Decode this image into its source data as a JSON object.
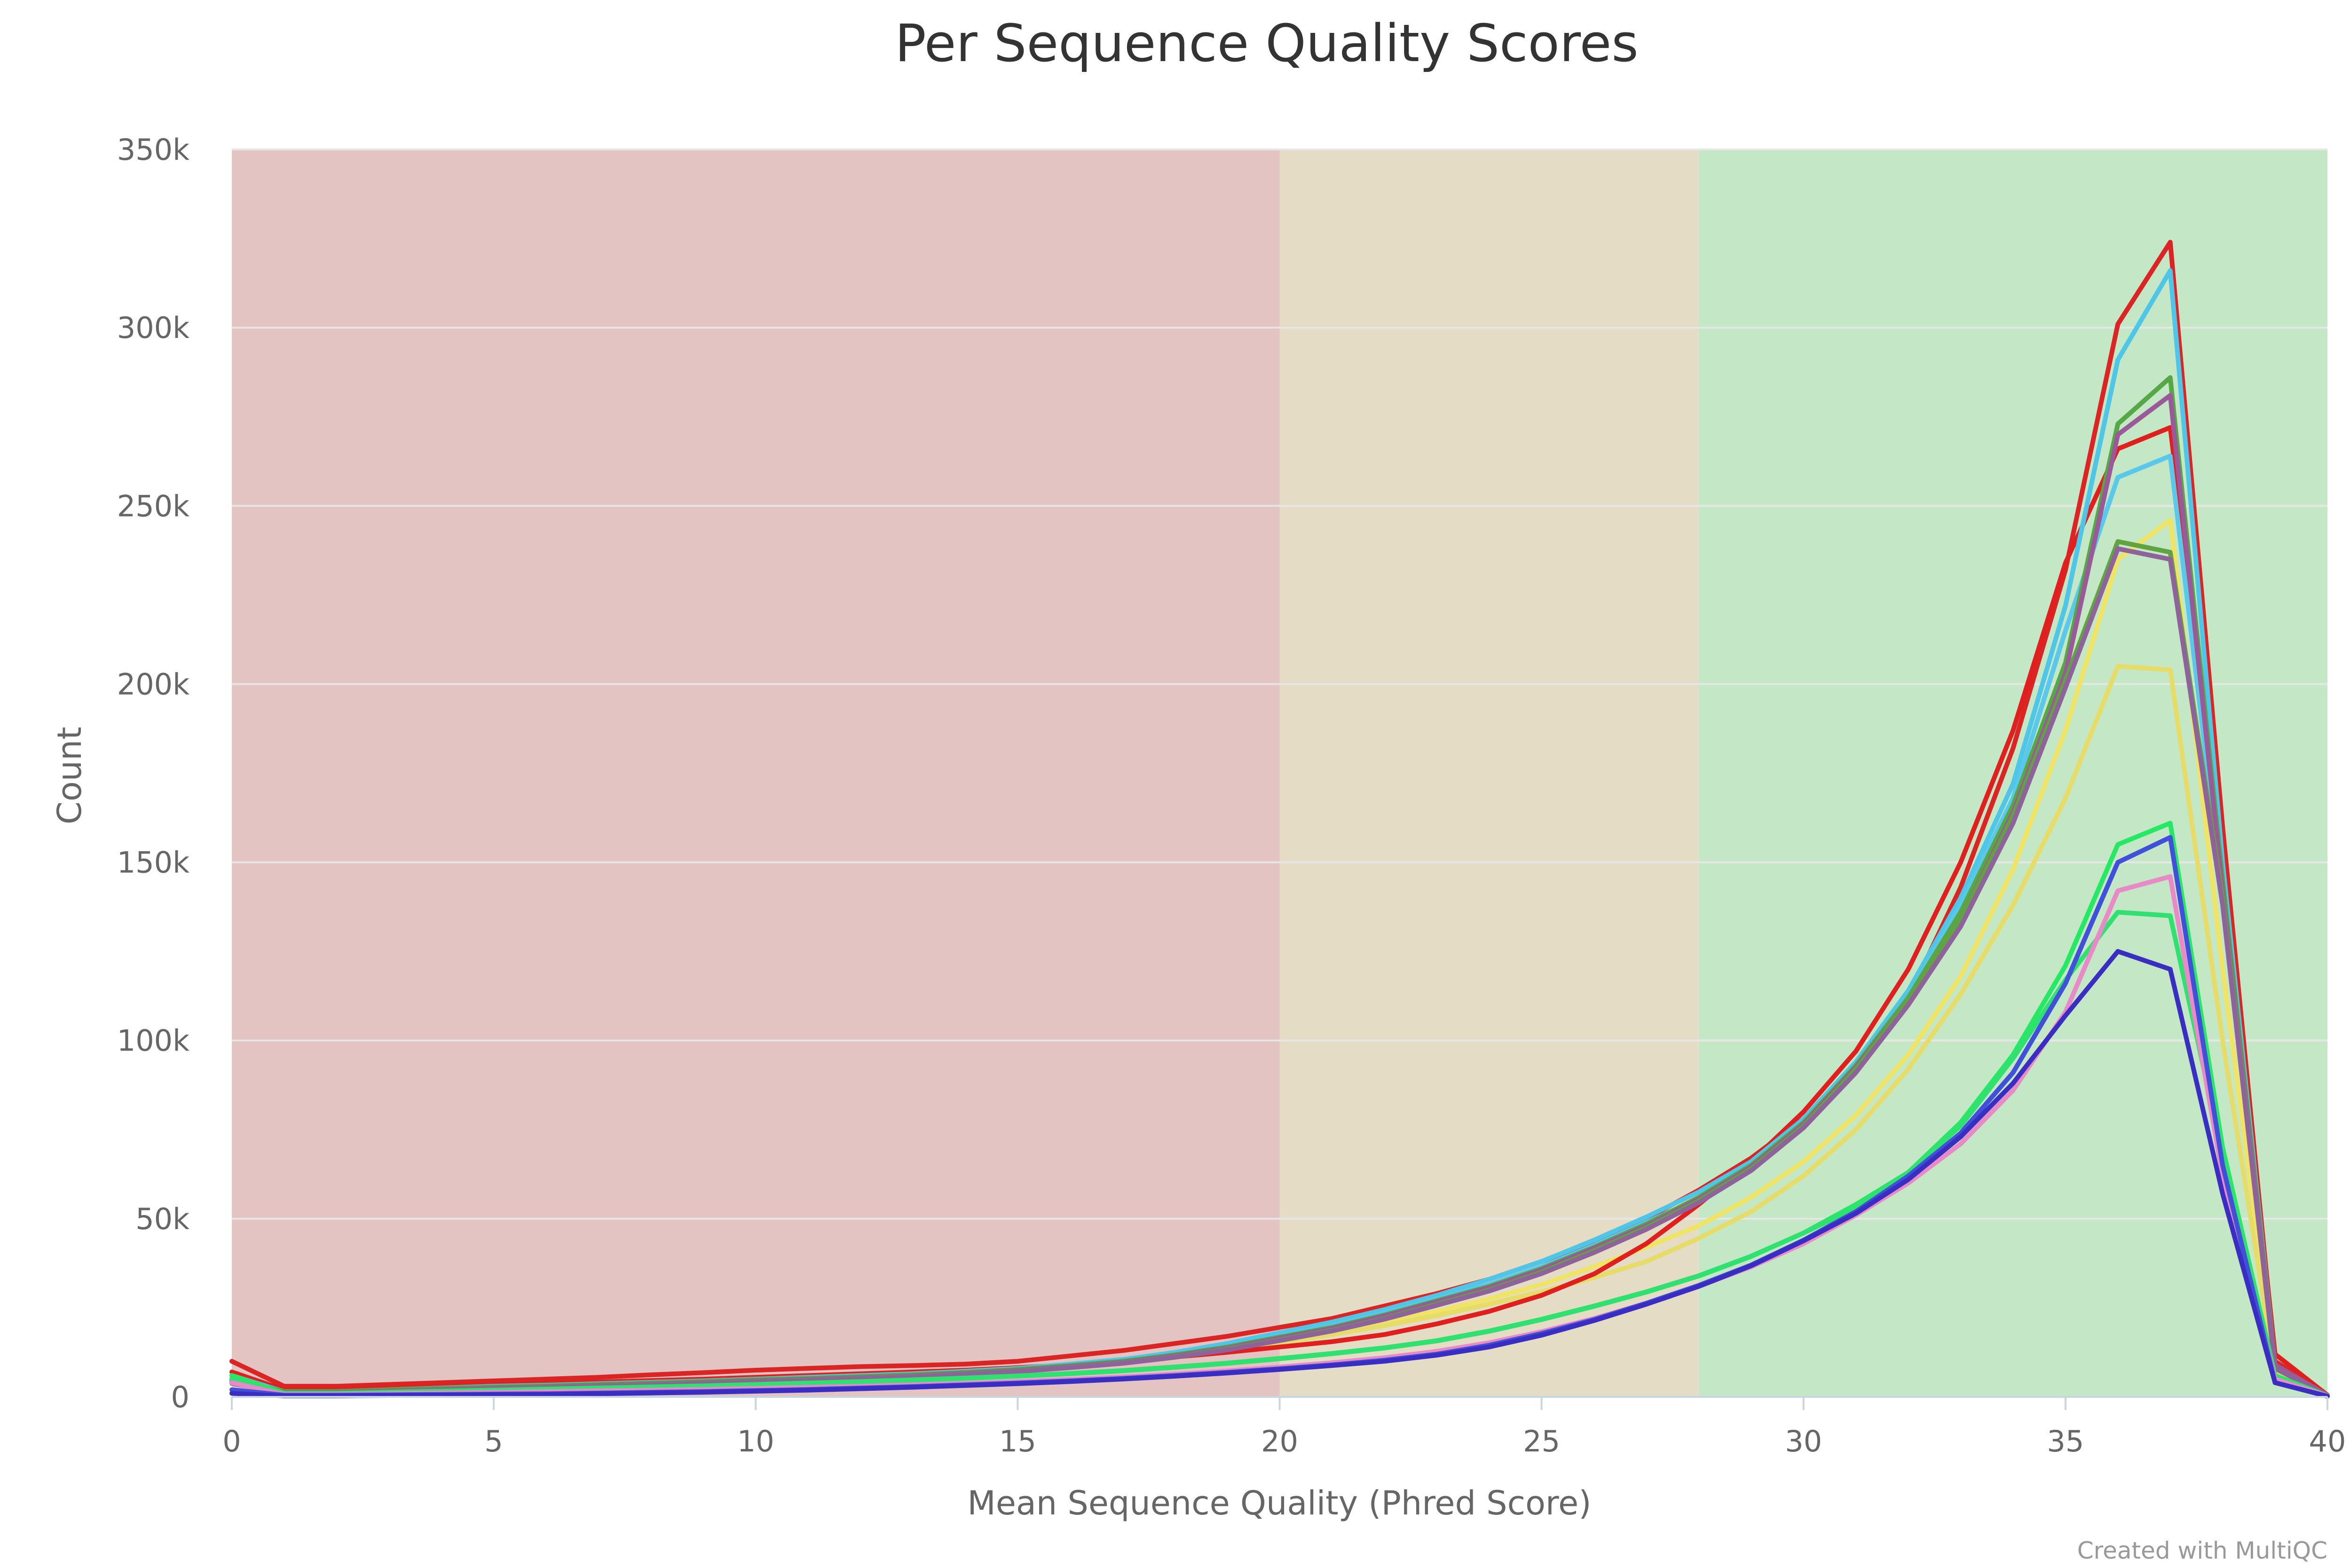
{
  "chart_data": {
    "type": "line",
    "title": "Per Sequence Quality Scores",
    "xlabel": "Mean Sequence Quality (Phred Score)",
    "ylabel": "Count",
    "xlim": [
      0,
      40
    ],
    "ylim": [
      0,
      350000
    ],
    "x_ticks": [
      0,
      5,
      10,
      15,
      20,
      25,
      30,
      35,
      40
    ],
    "x_tick_labels": [
      "0",
      "5",
      "10",
      "15",
      "20",
      "25",
      "30",
      "35",
      "40"
    ],
    "y_ticks": [
      0,
      50000,
      100000,
      150000,
      200000,
      250000,
      300000,
      350000
    ],
    "y_tick_labels": [
      "0",
      "50k",
      "100k",
      "150k",
      "200k",
      "250k",
      "300k",
      "350k"
    ],
    "grid": "horizontal",
    "bands": [
      {
        "from": 0,
        "to": 20,
        "color": "#e4c3c3"
      },
      {
        "from": 20,
        "to": 28,
        "color": "#e5dcc5"
      },
      {
        "from": 28,
        "to": 40,
        "color": "#c4e8c5"
      }
    ],
    "credit": "Created with MultiQC",
    "x": [
      0,
      1,
      2,
      3,
      4,
      5,
      6,
      7,
      8,
      9,
      10,
      11,
      12,
      13,
      14,
      15,
      16,
      17,
      18,
      19,
      20,
      21,
      22,
      23,
      24,
      25,
      26,
      27,
      28,
      29,
      30,
      31,
      32,
      33,
      34,
      35,
      36,
      37,
      38,
      39,
      40
    ],
    "series": [
      {
        "color": "#f0e466",
        "values": [
          4000,
          1500,
          1500,
          2000,
          2200,
          2500,
          2800,
          3200,
          3600,
          4000,
          4500,
          4800,
          5200,
          5800,
          6500,
          7200,
          8200,
          9500,
          11000,
          13000,
          15500,
          18000,
          21000,
          24000,
          27500,
          31500,
          36500,
          42000,
          48000,
          56000,
          66000,
          79000,
          96000,
          118000,
          148000,
          187000,
          235000,
          246000,
          120000,
          8000,
          500
        ]
      },
      {
        "color": "#e6dc6a",
        "values": [
          5000,
          1800,
          1800,
          2300,
          2500,
          2800,
          3100,
          3500,
          3900,
          4300,
          4800,
          5100,
          5500,
          6100,
          6800,
          7500,
          8400,
          9600,
          11000,
          12800,
          15000,
          17500,
          20000,
          22800,
          26000,
          29500,
          33500,
          38000,
          44500,
          52000,
          62000,
          75000,
          92000,
          113000,
          138000,
          168000,
          205000,
          204000,
          100000,
          7000,
          400
        ]
      },
      {
        "color": "#db2424",
        "values": [
          10000,
          3000,
          3000,
          3500,
          4000,
          4500,
          5000,
          5500,
          6200,
          6800,
          7500,
          8000,
          8500,
          8800,
          9200,
          10000,
          11500,
          13000,
          15000,
          17000,
          19500,
          22000,
          25500,
          29000,
          33000,
          38000,
          43500,
          50000,
          58000,
          67000,
          78000,
          92000,
          112000,
          143000,
          182000,
          232000,
          301000,
          324000,
          160000,
          10000,
          500
        ]
      },
      {
        "color": "#e01f1f",
        "values": [
          7000,
          2000,
          2000,
          2500,
          3000,
          3500,
          3800,
          4200,
          4600,
          5000,
          5500,
          6000,
          6500,
          7000,
          7500,
          8200,
          9000,
          10000,
          11200,
          12500,
          14000,
          15500,
          17500,
          20500,
          24000,
          28500,
          34500,
          43000,
          54000,
          66000,
          80000,
          97000,
          120000,
          150000,
          187000,
          234000,
          266000,
          272000,
          150000,
          12000,
          500
        ]
      },
      {
        "color": "#4fc6e8",
        "values": [
          6000,
          1500,
          1500,
          2000,
          2500,
          3000,
          3300,
          3700,
          4100,
          4500,
          5000,
          5500,
          6000,
          6500,
          7200,
          8000,
          9200,
          10500,
          12500,
          15000,
          18000,
          21000,
          24500,
          28500,
          33000,
          38000,
          44000,
          50500,
          57500,
          66000,
          78000,
          94000,
          114000,
          140000,
          172000,
          222000,
          291000,
          316000,
          150000,
          9000,
          400
        ]
      },
      {
        "color": "#5ac8ea",
        "values": [
          5000,
          1200,
          1200,
          1700,
          2200,
          2600,
          2900,
          3300,
          3700,
          4100,
          4600,
          5000,
          5500,
          6000,
          6700,
          7500,
          8600,
          9900,
          11800,
          14000,
          17000,
          20000,
          23500,
          27500,
          31500,
          36500,
          42500,
          49000,
          55500,
          64000,
          76000,
          92000,
          112000,
          138000,
          168000,
          215000,
          258000,
          264000,
          140000,
          8000,
          400
        ]
      },
      {
        "color": "#55a845",
        "values": [
          5000,
          1500,
          1500,
          2000,
          2400,
          2800,
          3100,
          3500,
          3900,
          4300,
          4800,
          5200,
          5700,
          6200,
          6900,
          7700,
          8800,
          10000,
          11800,
          14000,
          16800,
          19500,
          23000,
          27000,
          31000,
          36000,
          42000,
          48500,
          56000,
          65000,
          77000,
          93000,
          112000,
          136000,
          166000,
          206000,
          273000,
          286000,
          145000,
          9000,
          400
        ]
      },
      {
        "color": "#9a5a9a",
        "values": [
          4500,
          1200,
          1200,
          1700,
          2100,
          2500,
          2800,
          3200,
          3600,
          4000,
          4500,
          4900,
          5400,
          5900,
          6600,
          7400,
          8500,
          9700,
          11500,
          13700,
          16500,
          19200,
          22700,
          26700,
          30700,
          35700,
          41700,
          48000,
          55500,
          64500,
          76500,
          92500,
          111000,
          134000,
          164000,
          203000,
          270000,
          281000,
          142000,
          9000,
          400
        ]
      },
      {
        "color": "#61a341",
        "values": [
          4000,
          1000,
          1000,
          1500,
          1900,
          2300,
          2600,
          3000,
          3400,
          3800,
          4300,
          4700,
          5200,
          5700,
          6400,
          7200,
          8300,
          9500,
          11200,
          13400,
          16000,
          18700,
          22000,
          26000,
          30000,
          35000,
          41000,
          47500,
          55000,
          64000,
          76000,
          92000,
          111000,
          134000,
          163000,
          201000,
          240000,
          237000,
          140000,
          8000,
          400
        ]
      },
      {
        "color": "#8e629a",
        "values": [
          3800,
          1000,
          1000,
          1400,
          1800,
          2200,
          2500,
          2900,
          3300,
          3700,
          4200,
          4600,
          5100,
          5600,
          6300,
          7100,
          8200,
          9400,
          11100,
          13200,
          15800,
          18500,
          21800,
          25700,
          29700,
          34600,
          40500,
          47000,
          54500,
          63500,
          75500,
          91000,
          110000,
          132000,
          161000,
          199000,
          238000,
          235000,
          138000,
          8000,
          400
        ]
      },
      {
        "color": "#27e865",
        "values": [
          6000,
          1000,
          1000,
          1300,
          1600,
          1900,
          2200,
          2500,
          2800,
          3100,
          3500,
          3900,
          4300,
          4800,
          5300,
          5900,
          6600,
          7400,
          8400,
          9500,
          10800,
          12200,
          13800,
          15800,
          18500,
          21800,
          25500,
          29500,
          34000,
          39500,
          46000,
          54000,
          63000,
          77000,
          96000,
          121000,
          155000,
          161000,
          70000,
          6000,
          300
        ]
      },
      {
        "color": "#30e070",
        "values": [
          5000,
          900,
          900,
          1200,
          1500,
          1800,
          2100,
          2400,
          2700,
          3000,
          3400,
          3800,
          4200,
          4700,
          5200,
          5800,
          6500,
          7300,
          8300,
          9400,
          10700,
          12100,
          13700,
          15700,
          18400,
          21700,
          25400,
          29400,
          33900,
          39400,
          46000,
          53000,
          63000,
          76000,
          95000,
          117000,
          136000,
          135000,
          68000,
          5000,
          300
        ]
      },
      {
        "color": "#e88ac7",
        "values": [
          4000,
          700,
          700,
          900,
          1100,
          1300,
          1500,
          1700,
          1900,
          2100,
          2400,
          2700,
          3000,
          3400,
          3800,
          4300,
          4900,
          5600,
          6400,
          7300,
          8400,
          9600,
          11000,
          12800,
          15200,
          18300,
          22000,
          26300,
          31000,
          36500,
          43000,
          51000,
          60000,
          71000,
          86000,
          108000,
          142000,
          146000,
          62000,
          5000,
          300
        ]
      },
      {
        "color": "#4150d8",
        "values": [
          2000,
          500,
          500,
          600,
          700,
          800,
          900,
          1100,
          1300,
          1500,
          1800,
          2100,
          2500,
          2900,
          3400,
          3900,
          4500,
          5200,
          6000,
          6900,
          7900,
          9000,
          10300,
          12000,
          14500,
          17800,
          21700,
          26300,
          31300,
          37000,
          44000,
          52000,
          62000,
          74000,
          91000,
          116000,
          150000,
          157000,
          65000,
          4000,
          200
        ]
      },
      {
        "color": "#3a2ec2",
        "values": [
          1000,
          300,
          300,
          400,
          500,
          600,
          700,
          900,
          1100,
          1300,
          1600,
          1900,
          2300,
          2700,
          3200,
          3700,
          4300,
          5000,
          5800,
          6700,
          7700,
          8800,
          10000,
          11700,
          14000,
          17300,
          21400,
          26000,
          31000,
          36800,
          43800,
          51500,
          61000,
          73000,
          88000,
          107000,
          125000,
          120000,
          57000,
          4000,
          200
        ]
      }
    ]
  }
}
